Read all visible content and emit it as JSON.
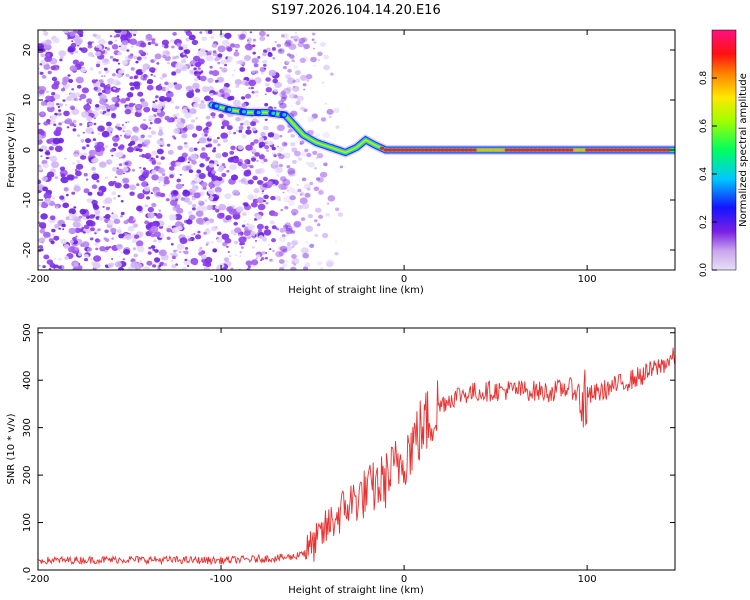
{
  "chart_data": [
    {
      "type": "heatmap",
      "title": "S197.2026.104.14.20.E16",
      "xlabel": "Height of straight line (km)",
      "ylabel": "Frequency (Hz)",
      "xlim": [
        -200,
        148
      ],
      "ylim": [
        -24,
        24
      ],
      "xticks": [
        -200,
        -100,
        0,
        100
      ],
      "yticks": [
        -20,
        -10,
        0,
        10,
        20
      ],
      "colorbar": {
        "label": "Normalized spectral amplitude",
        "range": [
          0.0,
          1.0
        ],
        "ticks": [
          "0.0",
          "0.2",
          "0.4",
          "0.6",
          "0.8"
        ]
      },
      "ridge_frequency_hz": [
        {
          "x": -105,
          "y": 9
        },
        {
          "x": -95,
          "y": 8
        },
        {
          "x": -85,
          "y": 7.5
        },
        {
          "x": -75,
          "y": 7.5
        },
        {
          "x": -65,
          "y": 7
        },
        {
          "x": -60,
          "y": 5
        },
        {
          "x": -55,
          "y": 3
        },
        {
          "x": -48,
          "y": 1.5
        },
        {
          "x": -40,
          "y": 0.5
        },
        {
          "x": -32,
          "y": -0.5
        },
        {
          "x": -26,
          "y": 0.5
        },
        {
          "x": -21,
          "y": 2
        },
        {
          "x": -16,
          "y": 1
        },
        {
          "x": -10,
          "y": 0
        },
        {
          "x": 0,
          "y": 0
        },
        {
          "x": 50,
          "y": 0
        },
        {
          "x": 100,
          "y": 0
        },
        {
          "x": 148,
          "y": 0
        }
      ]
    },
    {
      "type": "line",
      "xlabel": "Height of straight line (km)",
      "ylabel": "SNR (10 * v/v)",
      "xlim": [
        -200,
        148
      ],
      "ylim": [
        0,
        510
      ],
      "xticks": [
        -200,
        -100,
        0,
        100
      ],
      "yticks": [
        0,
        100,
        200,
        300,
        400,
        500
      ],
      "series": [
        {
          "name": "SNR",
          "color": "#e83030",
          "x": [
            -200,
            -150,
            -100,
            -70,
            -60,
            -50,
            -40,
            -30,
            -20,
            -10,
            0,
            10,
            20,
            30,
            40,
            60,
            80,
            90,
            100,
            110,
            120,
            130,
            140,
            148
          ],
          "y": [
            20,
            22,
            20,
            25,
            28,
            50,
            100,
            140,
            165,
            190,
            240,
            300,
            350,
            370,
            375,
            380,
            375,
            385,
            365,
            380,
            395,
            410,
            430,
            450
          ]
        }
      ]
    }
  ]
}
